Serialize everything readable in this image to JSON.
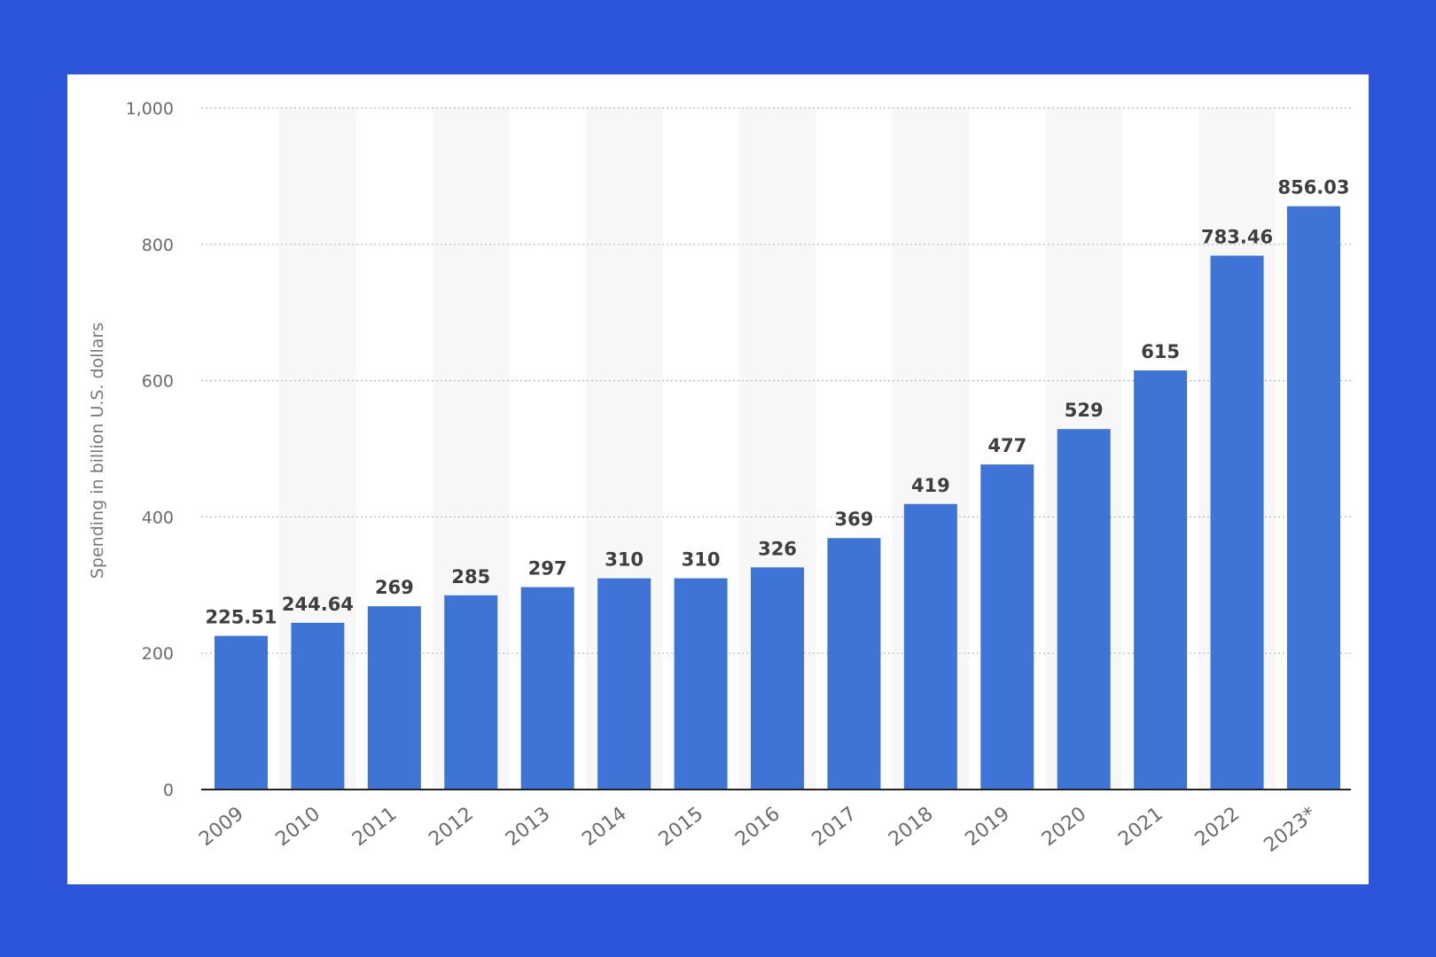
{
  "chart_data": {
    "type": "bar",
    "categories": [
      "2009",
      "2010",
      "2011",
      "2012",
      "2013",
      "2014",
      "2015",
      "2016",
      "2017",
      "2018",
      "2019",
      "2020",
      "2021",
      "2022",
      "2023*"
    ],
    "values": [
      225.51,
      244.64,
      269,
      285,
      297,
      310,
      310,
      326,
      369,
      419,
      477,
      529,
      615,
      783.46,
      856.03
    ],
    "value_labels": [
      "225.51",
      "244.64",
      "269",
      "285",
      "297",
      "310",
      "310",
      "326",
      "369",
      "419",
      "477",
      "529",
      "615",
      "783.46",
      "856.03"
    ],
    "xlabel": "",
    "ylabel": "Spending in billion U.S. dollars",
    "ylim": [
      0,
      1000
    ],
    "yticks": [
      0,
      200,
      400,
      600,
      800,
      1000
    ],
    "ytick_labels": [
      "0",
      "200",
      "400",
      "600",
      "800",
      "1,000"
    ],
    "grid": true,
    "colors": {
      "bar": "#3e74d6",
      "page_background": "#2c55db",
      "card_background": "#ffffff",
      "alt_band": "#f7f7f7"
    }
  }
}
